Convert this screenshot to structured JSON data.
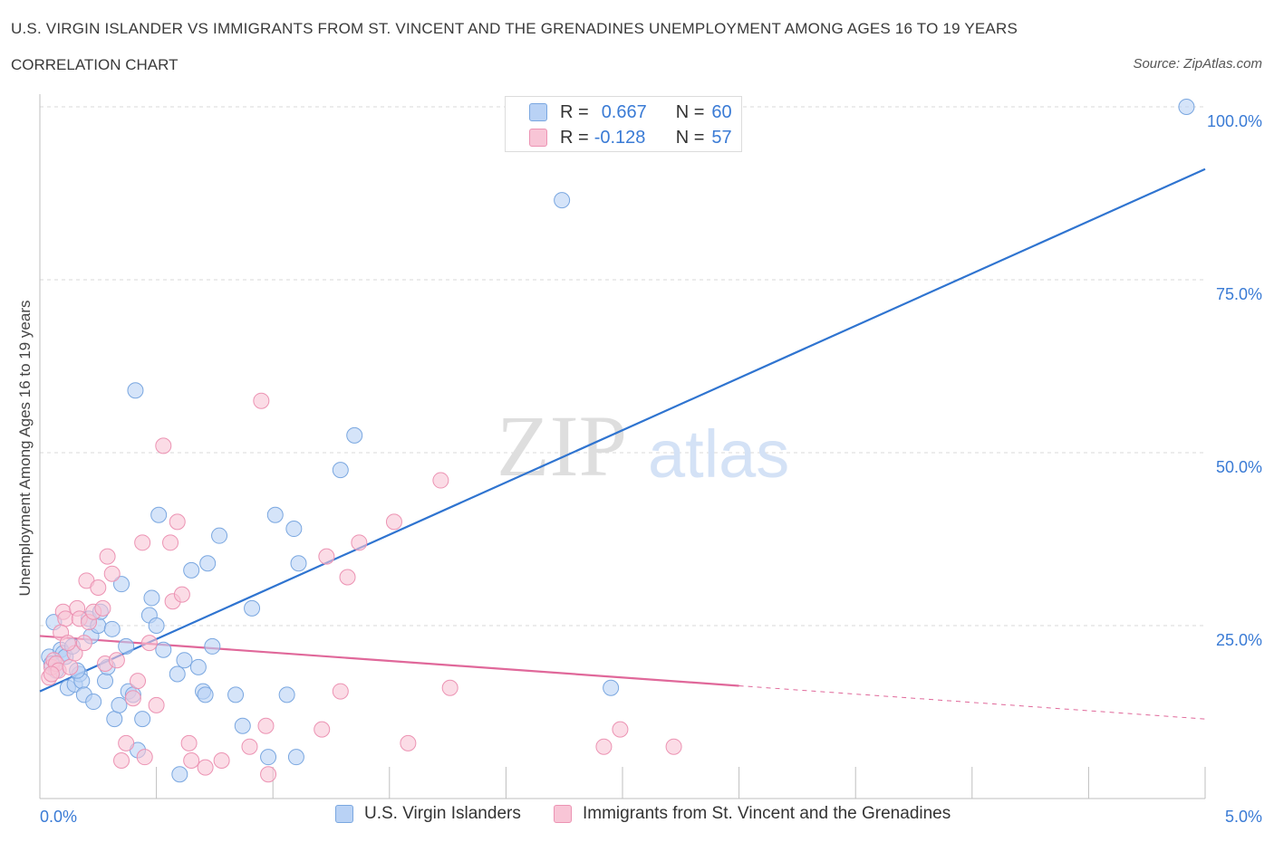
{
  "title": "U.S. VIRGIN ISLANDER VS IMMIGRANTS FROM ST. VINCENT AND THE GRENADINES UNEMPLOYMENT AMONG AGES 16 TO 19 YEARS",
  "subtitle": "CORRELATION CHART",
  "source": "Source: ZipAtlas.com",
  "watermark": {
    "zip": "ZIP",
    "atlas": "atlas"
  },
  "colors": {
    "blue_fill": "#b9d2f5",
    "blue_stroke": "#7aa7e0",
    "blue_line": "#2f74d0",
    "pink_fill": "#f8c5d6",
    "pink_stroke": "#ec93b3",
    "pink_line": "#e0689a",
    "axis_text": "#3a7bd5",
    "grid": "#d9d9d9"
  },
  "legend_top": {
    "rows": [
      {
        "r_label": "R =",
        "r_value": "0.667",
        "n_label": "N =",
        "n_value": "60"
      },
      {
        "r_label": "R =",
        "r_value": "-0.128",
        "n_label": "N =",
        "n_value": "57"
      }
    ]
  },
  "bottom_legend": [
    "U.S. Virgin Islanders",
    "Immigrants from St. Vincent and the Grenadines"
  ],
  "chart_data": {
    "type": "scatter",
    "title": "U.S. VIRGIN ISLANDER VS IMMIGRANTS FROM ST. VINCENT AND THE GRENADINES UNEMPLOYMENT AMONG AGES 16 TO 19 YEARS",
    "xlabel": "",
    "ylabel": "Unemployment Among Ages 16 to 19 years",
    "xlim": [
      0,
      5
    ],
    "ylim": [
      0,
      100
    ],
    "x_tick_labels": [
      "0.0%",
      "5.0%"
    ],
    "y_ticks": [
      25,
      50,
      75,
      100
    ],
    "y_tick_labels": [
      "25.0%",
      "50.0%",
      "75.0%",
      "100.0%"
    ],
    "grid": true,
    "legend_position": "top-center",
    "series": [
      {
        "name": "U.S. Virgin Islanders",
        "R": 0.667,
        "N": 60,
        "trend": {
          "x": [
            0,
            5
          ],
          "y": [
            15.5,
            91.0
          ],
          "dash_from": null
        },
        "points": [
          [
            0.04,
            20.5
          ],
          [
            0.05,
            19.5
          ],
          [
            0.06,
            25.5
          ],
          [
            0.07,
            18.5
          ],
          [
            0.09,
            21.5
          ],
          [
            0.1,
            21.0
          ],
          [
            0.11,
            20.5
          ],
          [
            0.12,
            16.0
          ],
          [
            0.14,
            22.0
          ],
          [
            0.15,
            16.5
          ],
          [
            0.17,
            18.0
          ],
          [
            0.18,
            17.0
          ],
          [
            0.19,
            15.0
          ],
          [
            0.21,
            26.0
          ],
          [
            0.22,
            23.5
          ],
          [
            0.23,
            14.0
          ],
          [
            0.25,
            25.0
          ],
          [
            0.26,
            27.0
          ],
          [
            0.28,
            17.0
          ],
          [
            0.29,
            19.0
          ],
          [
            0.31,
            24.5
          ],
          [
            0.32,
            11.5
          ],
          [
            0.34,
            13.5
          ],
          [
            0.35,
            31.0
          ],
          [
            0.37,
            22.0
          ],
          [
            0.38,
            15.5
          ],
          [
            0.4,
            15.0
          ],
          [
            0.41,
            59.0
          ],
          [
            0.42,
            7.0
          ],
          [
            0.44,
            11.5
          ],
          [
            0.47,
            26.5
          ],
          [
            0.48,
            29.0
          ],
          [
            0.5,
            25.0
          ],
          [
            0.51,
            41.0
          ],
          [
            0.53,
            21.5
          ],
          [
            0.59,
            18.0
          ],
          [
            0.62,
            20.0
          ],
          [
            0.65,
            33.0
          ],
          [
            0.68,
            19.0
          ],
          [
            0.7,
            15.5
          ],
          [
            0.71,
            15.0
          ],
          [
            0.72,
            34.0
          ],
          [
            0.74,
            22.0
          ],
          [
            0.77,
            38.0
          ],
          [
            0.84,
            15.0
          ],
          [
            0.87,
            10.5
          ],
          [
            0.91,
            27.5
          ],
          [
            0.98,
            6.0
          ],
          [
            1.01,
            41.0
          ],
          [
            1.06,
            15.0
          ],
          [
            1.09,
            39.0
          ],
          [
            1.1,
            6.0
          ],
          [
            1.11,
            34.0
          ],
          [
            1.29,
            47.5
          ],
          [
            1.35,
            52.5
          ],
          [
            0.6,
            3.5
          ],
          [
            2.24,
            86.5
          ],
          [
            2.45,
            16.0
          ],
          [
            4.92,
            100.0
          ],
          [
            0.16,
            18.5
          ]
        ]
      },
      {
        "name": "Immigrants from St. Vincent and the Grenadines",
        "R": -0.128,
        "N": 57,
        "trend": {
          "x": [
            0,
            3.0,
            5
          ],
          "y": [
            23.5,
            16.3,
            11.5
          ],
          "dash_from": 3.0
        },
        "points": [
          [
            0.04,
            17.5
          ],
          [
            0.05,
            19.0
          ],
          [
            0.06,
            20.0
          ],
          [
            0.07,
            19.5
          ],
          [
            0.08,
            18.5
          ],
          [
            0.1,
            27.0
          ],
          [
            0.11,
            26.0
          ],
          [
            0.13,
            19.0
          ],
          [
            0.15,
            21.0
          ],
          [
            0.16,
            27.5
          ],
          [
            0.17,
            26.0
          ],
          [
            0.19,
            22.5
          ],
          [
            0.2,
            31.5
          ],
          [
            0.21,
            25.5
          ],
          [
            0.23,
            27.0
          ],
          [
            0.25,
            30.5
          ],
          [
            0.27,
            27.5
          ],
          [
            0.28,
            19.5
          ],
          [
            0.29,
            35.0
          ],
          [
            0.31,
            32.5
          ],
          [
            0.33,
            20.0
          ],
          [
            0.35,
            5.5
          ],
          [
            0.37,
            8.0
          ],
          [
            0.4,
            14.5
          ],
          [
            0.42,
            17.0
          ],
          [
            0.44,
            37.0
          ],
          [
            0.45,
            6.0
          ],
          [
            0.47,
            22.5
          ],
          [
            0.5,
            13.5
          ],
          [
            0.53,
            51.0
          ],
          [
            0.56,
            37.0
          ],
          [
            0.57,
            28.5
          ],
          [
            0.59,
            40.0
          ],
          [
            0.61,
            29.5
          ],
          [
            0.64,
            8.0
          ],
          [
            0.65,
            5.5
          ],
          [
            0.71,
            4.5
          ],
          [
            0.78,
            5.5
          ],
          [
            0.9,
            7.5
          ],
          [
            0.95,
            57.5
          ],
          [
            0.97,
            10.5
          ],
          [
            0.98,
            3.5
          ],
          [
            1.21,
            10.0
          ],
          [
            1.23,
            35.0
          ],
          [
            1.29,
            15.5
          ],
          [
            1.32,
            32.0
          ],
          [
            1.37,
            37.0
          ],
          [
            1.52,
            40.0
          ],
          [
            1.58,
            8.0
          ],
          [
            1.72,
            46.0
          ],
          [
            1.76,
            16.0
          ],
          [
            2.42,
            7.5
          ],
          [
            2.49,
            10.0
          ],
          [
            2.72,
            7.5
          ],
          [
            0.09,
            24.0
          ],
          [
            0.12,
            22.5
          ],
          [
            0.05,
            18.0
          ]
        ]
      }
    ]
  }
}
